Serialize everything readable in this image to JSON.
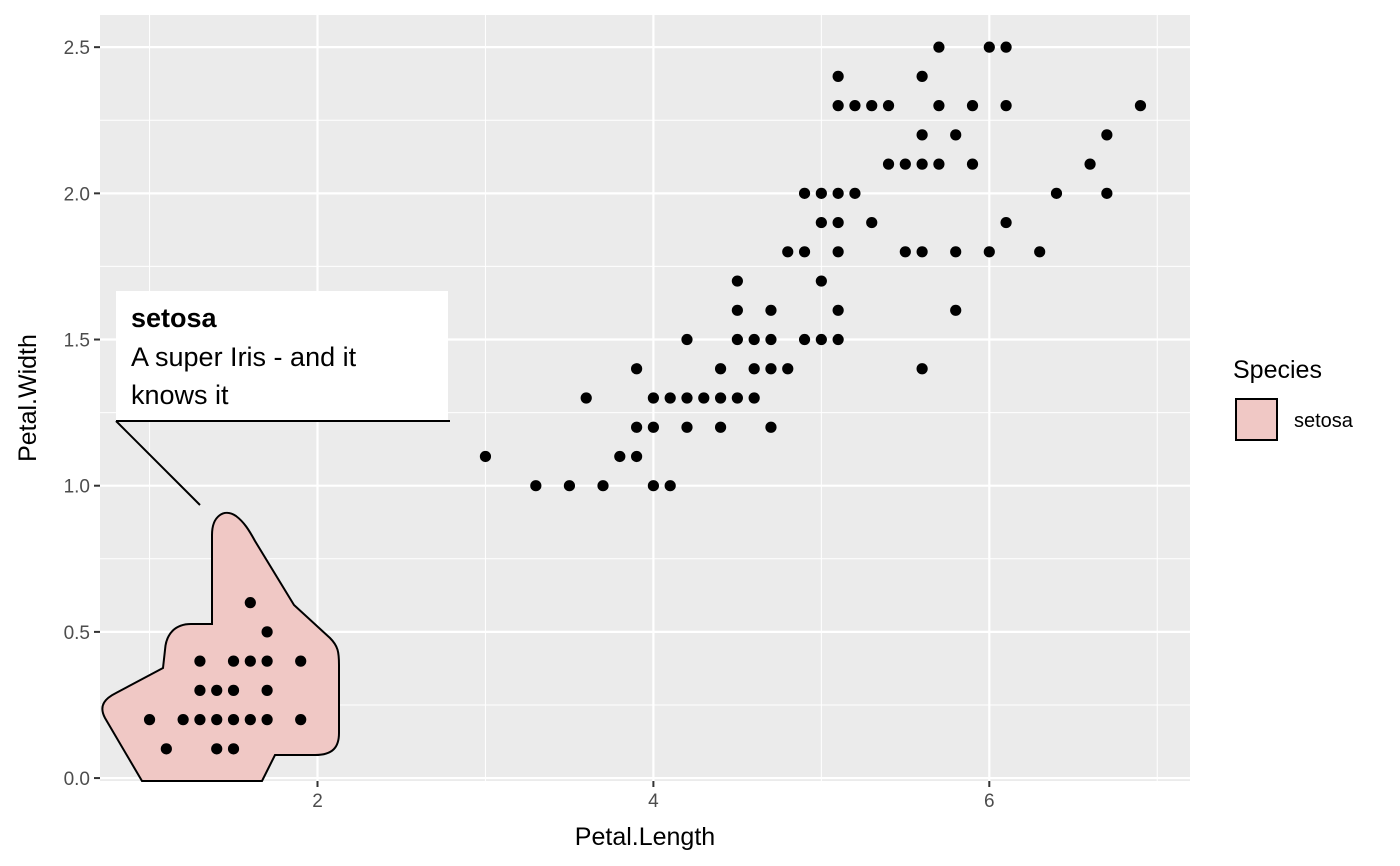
{
  "chart_data": {
    "type": "scatter",
    "xlabel": "Petal.Length",
    "ylabel": "Petal.Width",
    "xlim": [
      0.705,
      7.195
    ],
    "ylim": [
      -0.01,
      2.61
    ],
    "x_ticks": [
      2,
      4,
      6
    ],
    "y_ticks": [
      0.0,
      0.5,
      1.0,
      1.5,
      2.0,
      2.5
    ],
    "x_tick_labels": [
      "2",
      "4",
      "6"
    ],
    "y_tick_labels": [
      "0.0",
      "0.5",
      "1.0",
      "1.5",
      "2.0",
      "2.5"
    ],
    "grid": true,
    "legend": {
      "title": "Species",
      "position": "right",
      "entries": [
        {
          "label": "setosa",
          "color": "#f0c8c5"
        }
      ]
    },
    "annotation": {
      "title": "setosa",
      "lines": [
        "A super Iris - and it",
        "knows it"
      ]
    },
    "hull_fill": "#f0c8c5",
    "points": [
      [
        1.0,
        0.2
      ],
      [
        1.2,
        0.2
      ],
      [
        1.3,
        0.2
      ],
      [
        1.4,
        0.2
      ],
      [
        1.5,
        0.2
      ],
      [
        1.6,
        0.2
      ],
      [
        1.7,
        0.2
      ],
      [
        1.9,
        0.2
      ],
      [
        1.1,
        0.1
      ],
      [
        1.4,
        0.1
      ],
      [
        1.5,
        0.1
      ],
      [
        1.3,
        0.3
      ],
      [
        1.4,
        0.3
      ],
      [
        1.5,
        0.3
      ],
      [
        1.7,
        0.3
      ],
      [
        1.3,
        0.4
      ],
      [
        1.5,
        0.4
      ],
      [
        1.6,
        0.4
      ],
      [
        1.7,
        0.4
      ],
      [
        1.9,
        0.4
      ],
      [
        1.7,
        0.5
      ],
      [
        1.6,
        0.6
      ],
      [
        3.0,
        1.1
      ],
      [
        3.3,
        1.0
      ],
      [
        3.5,
        1.0
      ],
      [
        3.7,
        1.0
      ],
      [
        4.0,
        1.0
      ],
      [
        4.1,
        1.0
      ],
      [
        3.6,
        1.3
      ],
      [
        3.8,
        1.1
      ],
      [
        3.9,
        1.1
      ],
      [
        3.9,
        1.2
      ],
      [
        4.0,
        1.2
      ],
      [
        4.2,
        1.2
      ],
      [
        4.4,
        1.2
      ],
      [
        4.7,
        1.2
      ],
      [
        4.0,
        1.3
      ],
      [
        4.1,
        1.3
      ],
      [
        4.2,
        1.3
      ],
      [
        4.3,
        1.3
      ],
      [
        4.4,
        1.3
      ],
      [
        4.5,
        1.3
      ],
      [
        4.6,
        1.3
      ],
      [
        3.9,
        1.4
      ],
      [
        4.4,
        1.4
      ],
      [
        4.6,
        1.4
      ],
      [
        4.7,
        1.4
      ],
      [
        4.8,
        1.4
      ],
      [
        5.6,
        1.4
      ],
      [
        4.2,
        1.5
      ],
      [
        4.5,
        1.5
      ],
      [
        4.6,
        1.5
      ],
      [
        4.7,
        1.5
      ],
      [
        4.9,
        1.5
      ],
      [
        5.0,
        1.5
      ],
      [
        5.1,
        1.5
      ],
      [
        4.5,
        1.6
      ],
      [
        4.7,
        1.6
      ],
      [
        5.1,
        1.6
      ],
      [
        5.8,
        1.6
      ],
      [
        4.5,
        1.7
      ],
      [
        5.0,
        1.7
      ],
      [
        4.8,
        1.8
      ],
      [
        4.9,
        1.8
      ],
      [
        5.1,
        1.8
      ],
      [
        5.5,
        1.8
      ],
      [
        5.6,
        1.8
      ],
      [
        5.8,
        1.8
      ],
      [
        6.0,
        1.8
      ],
      [
        6.3,
        1.8
      ],
      [
        5.0,
        1.9
      ],
      [
        5.1,
        1.9
      ],
      [
        5.3,
        1.9
      ],
      [
        6.1,
        1.9
      ],
      [
        4.9,
        2.0
      ],
      [
        5.0,
        2.0
      ],
      [
        5.1,
        2.0
      ],
      [
        5.2,
        2.0
      ],
      [
        6.4,
        2.0
      ],
      [
        6.7,
        2.0
      ],
      [
        5.4,
        2.1
      ],
      [
        5.5,
        2.1
      ],
      [
        5.6,
        2.1
      ],
      [
        5.7,
        2.1
      ],
      [
        5.9,
        2.1
      ],
      [
        6.6,
        2.1
      ],
      [
        5.6,
        2.2
      ],
      [
        5.8,
        2.2
      ],
      [
        6.7,
        2.2
      ],
      [
        5.1,
        2.3
      ],
      [
        5.2,
        2.3
      ],
      [
        5.3,
        2.3
      ],
      [
        5.4,
        2.3
      ],
      [
        5.7,
        2.3
      ],
      [
        5.9,
        2.3
      ],
      [
        6.1,
        2.3
      ],
      [
        6.9,
        2.3
      ],
      [
        5.1,
        2.4
      ],
      [
        5.6,
        2.4
      ],
      [
        5.7,
        2.5
      ],
      [
        6.0,
        2.5
      ],
      [
        6.1,
        2.5
      ]
    ]
  }
}
